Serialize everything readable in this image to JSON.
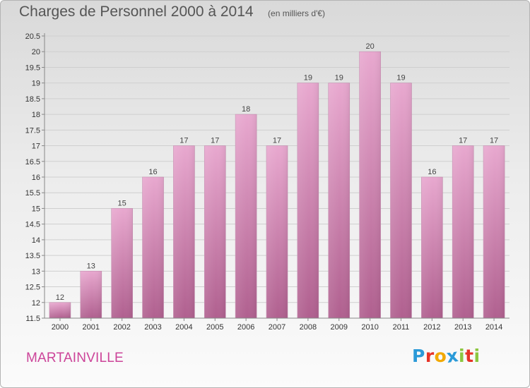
{
  "header": {
    "title": "Charges de Personnel 2000 à 2014",
    "subtitle": "(en milliers d'€)"
  },
  "footer": {
    "commune": "MARTAINVILLE",
    "brand": "Proxiti",
    "brand_letters": [
      "P",
      "r",
      "o",
      "x",
      "i",
      "t",
      "i"
    ],
    "brand_colors": [
      "#2b9ad8",
      "#e63327",
      "#f2a900",
      "#2b9ad8",
      "#8cc63f",
      "#e63327",
      "#8cc63f"
    ]
  },
  "colors": {
    "bar_top": "#e8a8cf",
    "bar_bottom": "#b0608f",
    "axis": "#888888",
    "grid": "#cfcfcf"
  },
  "chart_data": {
    "type": "bar",
    "categories": [
      "2000",
      "2001",
      "2002",
      "2003",
      "2004",
      "2005",
      "2006",
      "2007",
      "2008",
      "2009",
      "2010",
      "2011",
      "2012",
      "2013",
      "2014"
    ],
    "values": [
      12,
      13,
      15,
      16,
      17,
      17,
      18,
      17,
      19,
      19,
      20,
      19,
      16,
      17,
      17
    ],
    "value_labels": [
      "12",
      "13",
      "15",
      "16",
      "17",
      "17",
      "18",
      "17",
      "19",
      "19",
      "20",
      "19",
      "16",
      "17",
      "17"
    ],
    "title": "Charges de Personnel 2000 à 2014",
    "subtitle": "(en milliers d'€)",
    "xlabel": "",
    "ylabel": "",
    "ylim": [
      11.5,
      20.5
    ],
    "yticks": [
      "11.5",
      "12",
      "12.5",
      "13",
      "13.5",
      "14",
      "14.5",
      "15",
      "15.5",
      "16",
      "16.5",
      "17",
      "17.5",
      "18",
      "18.5",
      "19",
      "19.5",
      "20",
      "20.5"
    ],
    "grid": true,
    "legend": "none"
  }
}
